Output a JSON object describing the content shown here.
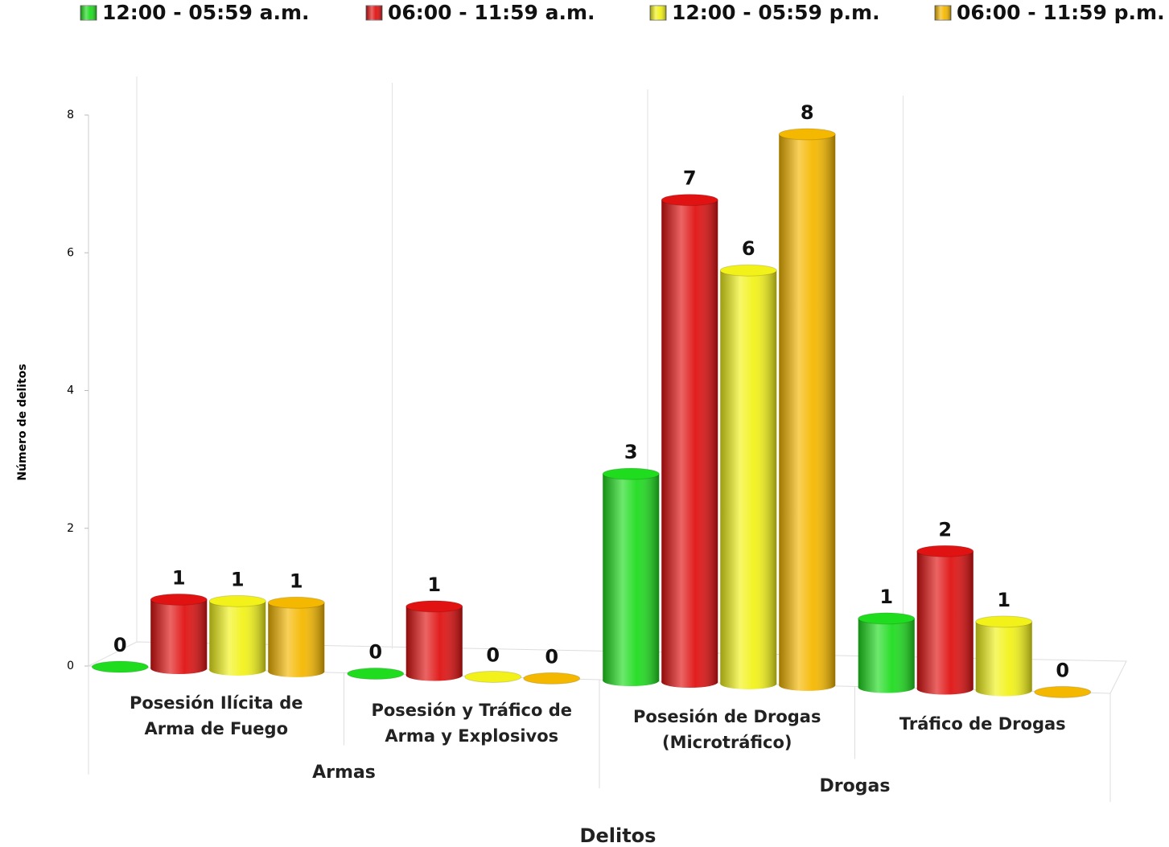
{
  "chart_data": {
    "type": "bar3d",
    "x_label": "Delitos",
    "y_label": "Número de delitos",
    "category_groups": [
      {
        "name": "Armas",
        "categories": [
          "Posesión Ilícita de Arma de Fuego",
          "Posesión y Tráfico de Arma y Explosivos"
        ]
      },
      {
        "name": "Drogas",
        "categories": [
          "Posesión de Drogas (Microtráfico)",
          "Tráfico de Drogas"
        ]
      }
    ],
    "series": [
      {
        "name": "12:00 - 05:59 a.m.",
        "color": "#1fdc1f",
        "values": [
          0,
          0,
          3,
          1
        ]
      },
      {
        "name": "06:00 - 11:59 a.m.",
        "color": "#e01212",
        "values": [
          1,
          1,
          7,
          2
        ]
      },
      {
        "name": "12:00 - 05:59 p.m.",
        "color": "#f2f21a",
        "values": [
          1,
          0,
          6,
          1
        ]
      },
      {
        "name": "06:00 - 11:59 p.m.",
        "color": "#f5b800",
        "values": [
          1,
          0,
          8,
          0
        ]
      }
    ],
    "ylim": [
      0,
      8
    ],
    "yticks": [
      0,
      2,
      4,
      6,
      8
    ],
    "grid": false,
    "legend": "top"
  }
}
